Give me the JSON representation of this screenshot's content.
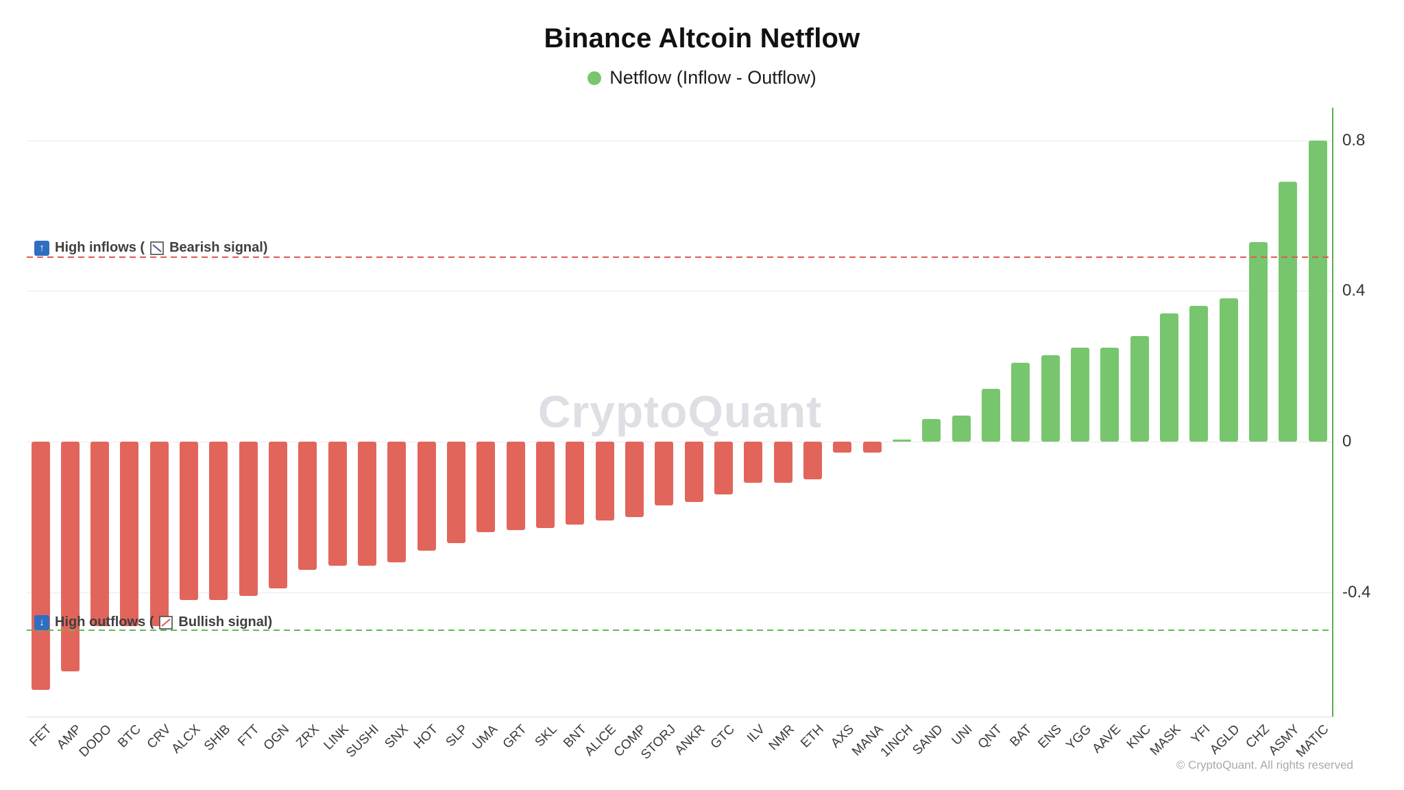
{
  "watermark": "CryptoQuant",
  "copyright": "© CryptoQuant. All rights reserved",
  "legend": {
    "label": "Netflow (Inflow - Outflow)",
    "dot_color": "#77c66e"
  },
  "annotations": {
    "inflow": {
      "arrow": "↑",
      "arrow_icon": "up-arrow-badge-icon",
      "prefix": "High inflows (",
      "signal_icon": "bearish-trend-icon",
      "signal_icon_color": "#44597e",
      "suffix": "Bearish signal)",
      "line_value": 0.49,
      "line_color": "#df5b51"
    },
    "outflow": {
      "arrow": "↓",
      "arrow_icon": "down-arrow-badge-icon",
      "prefix": "High outflows (",
      "signal_icon": "bullish-trend-icon",
      "signal_icon_color": "#d9534f",
      "suffix": "Bullish signal)",
      "line_value": -0.5,
      "line_color": "#63b856"
    }
  },
  "chart_data": {
    "type": "bar",
    "title": "Binance Altcoin Netflow",
    "legend_entries": [
      "Netflow (Inflow - Outflow)"
    ],
    "legend_position": "top-center",
    "grid": true,
    "y_axis_side": "right",
    "ylim": [
      -0.73,
      0.89
    ],
    "yticks": [
      "0.8",
      "0.4",
      "0",
      "-0.4"
    ],
    "ytick_values": [
      0.8,
      0.4,
      0,
      -0.4
    ],
    "xlabel": "",
    "ylabel": "",
    "colors": {
      "positive": "#77c66e",
      "negative": "#e2655c",
      "axis": "#56b14c"
    },
    "categories": [
      "FET",
      "AMP",
      "DODO",
      "BTC",
      "CRV",
      "ALCX",
      "SHIB",
      "FTT",
      "OGN",
      "ZRX",
      "LINK",
      "SUSHI",
      "SNX",
      "HOT",
      "SLP",
      "UMA",
      "GRT",
      "SKL",
      "BNT",
      "ALICE",
      "COMP",
      "STORJ",
      "ANKR",
      "GTC",
      "ILV",
      "NMR",
      "ETH",
      "AXS",
      "MANA",
      "1INCH",
      "SAND",
      "UNI",
      "QNT",
      "BAT",
      "ENS",
      "YGG",
      "AAVE",
      "KNC",
      "MASK",
      "YFI",
      "AGLD",
      "CHZ",
      "ASMY",
      "MATIC"
    ],
    "values": [
      -0.66,
      -0.61,
      -0.49,
      -0.49,
      -0.49,
      -0.42,
      -0.42,
      -0.41,
      -0.39,
      -0.34,
      -0.33,
      -0.33,
      -0.32,
      -0.29,
      -0.27,
      -0.24,
      -0.235,
      -0.23,
      -0.22,
      -0.21,
      -0.2,
      -0.17,
      -0.16,
      -0.14,
      -0.11,
      -0.11,
      -0.1,
      -0.03,
      -0.03,
      0.005,
      0.06,
      0.07,
      0.14,
      0.21,
      0.23,
      0.25,
      0.25,
      0.28,
      0.34,
      0.36,
      0.38,
      0.53,
      0.69,
      0.8
    ],
    "threshold_lines": [
      {
        "label": "High inflows (Bearish signal)",
        "value": 0.49,
        "style": "dashed",
        "color": "#df5b51"
      },
      {
        "label": "High outflows (Bullish signal)",
        "value": -0.5,
        "style": "dashed",
        "color": "#63b856"
      }
    ]
  }
}
